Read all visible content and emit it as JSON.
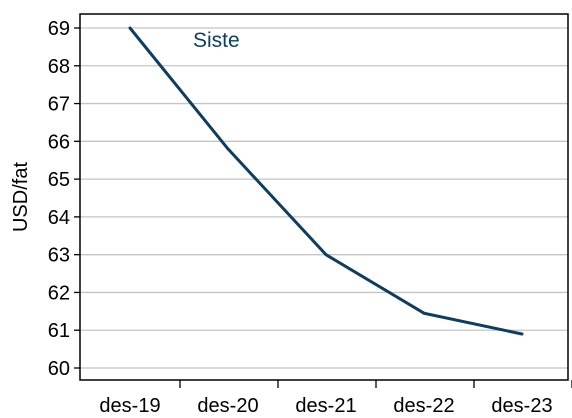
{
  "chart_data": {
    "type": "line",
    "title": "",
    "xlabel": "",
    "ylabel": "USD/fat",
    "categories": [
      "des-19",
      "des-20",
      "des-21",
      "des-22",
      "des-23"
    ],
    "ylim": [
      60,
      69
    ],
    "yticks": [
      60,
      61,
      62,
      63,
      64,
      65,
      66,
      67,
      68,
      69
    ],
    "grid": "horizontal",
    "series": [
      {
        "name": "Siste",
        "values": [
          69.0,
          65.8,
          63.0,
          61.45,
          60.9
        ],
        "color": "#0e3d5f"
      }
    ]
  }
}
